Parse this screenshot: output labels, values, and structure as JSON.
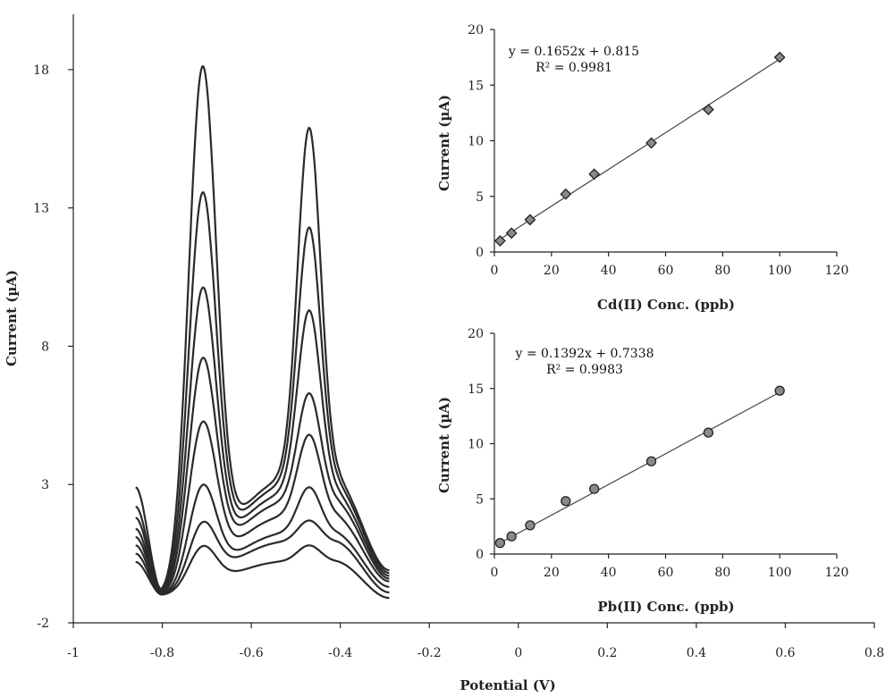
{
  "chart_data": [
    {
      "type": "line",
      "xlabel": "Potential (V)",
      "ylabel": "Current (µA)",
      "xlim": [
        -1,
        0.8
      ],
      "ylim": [
        -2,
        20
      ],
      "xticks": [
        "-1",
        "-0.8",
        "-0.6",
        "-0.4",
        "-0.2",
        "0",
        "0.2",
        "0.4",
        "0.6",
        "0.8"
      ],
      "yticks": [
        "-2",
        "3",
        "8",
        "13",
        "18"
      ],
      "x_range": [
        -0.86,
        -0.29
      ],
      "peaks": {
        "cd_potential": -0.71,
        "pb_potential": -0.47
      },
      "series": [
        {
          "baseline_start": 0.2,
          "cd_peak": 1.0,
          "valley": 0.2,
          "pb_peak": 0.8,
          "end": -1.1
        },
        {
          "baseline_start": 0.5,
          "cd_peak": 2.0,
          "valley": 0.9,
          "pb_peak": 1.7,
          "end": -0.9
        },
        {
          "baseline_start": 0.8,
          "cd_peak": 3.4,
          "valley": 1.2,
          "pb_peak": 2.9,
          "end": -0.7
        },
        {
          "baseline_start": 1.1,
          "cd_peak": 5.8,
          "valley": 1.8,
          "pb_peak": 4.8,
          "end": -0.5
        },
        {
          "baseline_start": 1.4,
          "cd_peak": 8.2,
          "valley": 2.3,
          "pb_peak": 6.3,
          "end": -0.4
        },
        {
          "baseline_start": 1.8,
          "cd_peak": 10.8,
          "valley": 2.6,
          "pb_peak": 9.3,
          "end": -0.3
        },
        {
          "baseline_start": 2.2,
          "cd_peak": 14.3,
          "valley": 2.9,
          "pb_peak": 12.3,
          "end": -0.2
        },
        {
          "baseline_start": 2.9,
          "cd_peak": 18.9,
          "valley": 3.1,
          "pb_peak": 15.9,
          "end": -0.1
        }
      ]
    },
    {
      "type": "scatter",
      "xlabel": "Cd(II) Conc. (ppb)",
      "ylabel": "Current (µA)",
      "xlim": [
        0,
        120
      ],
      "ylim": [
        0,
        20
      ],
      "xticks": [
        "0",
        "20",
        "40",
        "60",
        "80",
        "100",
        "120"
      ],
      "yticks": [
        "0",
        "5",
        "10",
        "15",
        "20"
      ],
      "marker": "diamond",
      "x": [
        2,
        6,
        12.5,
        25,
        35,
        55,
        75,
        100
      ],
      "y": [
        1.0,
        1.7,
        2.9,
        5.2,
        7.0,
        9.8,
        12.8,
        17.5
      ],
      "fit": {
        "slope": 0.1652,
        "intercept": 0.815
      },
      "equation": "y = 0.1652x + 0.815",
      "r2": "R² = 0.9981"
    },
    {
      "type": "scatter",
      "xlabel": "Pb(II) Conc. (ppb)",
      "ylabel": "Current (µA)",
      "xlim": [
        0,
        120
      ],
      "ylim": [
        0,
        20
      ],
      "xticks": [
        "0",
        "20",
        "40",
        "60",
        "80",
        "100",
        "120"
      ],
      "yticks": [
        "0",
        "5",
        "10",
        "15",
        "20"
      ],
      "marker": "circle",
      "x": [
        2,
        6,
        12.5,
        25,
        35,
        55,
        75,
        100
      ],
      "y": [
        1.0,
        1.6,
        2.6,
        4.8,
        5.9,
        8.4,
        11.0,
        14.8
      ],
      "fit": {
        "slope": 0.1392,
        "intercept": 0.7338
      },
      "equation": "y = 0.1392x + 0.7338",
      "r2": "R² = 0.9983"
    }
  ]
}
